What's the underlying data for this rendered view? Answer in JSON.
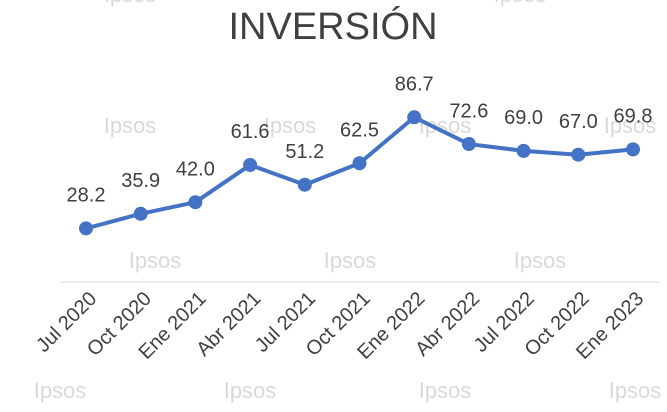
{
  "chart_data": {
    "type": "line",
    "title": "INVERSIÓN",
    "categories": [
      "Jul 2020",
      "Oct 2020",
      "Ene 2021",
      "Abr 2021",
      "Jul 2021",
      "Oct 2021",
      "Ene 2022",
      "Abr 2022",
      "Jul 2022",
      "Oct 2022",
      "Ene 2023"
    ],
    "values": [
      28.2,
      35.9,
      42.0,
      61.6,
      51.2,
      62.5,
      86.7,
      72.6,
      69.0,
      67.0,
      69.8
    ],
    "value_labels": [
      "28.2",
      "35.9",
      "42.0",
      "61.6",
      "51.2",
      "62.5",
      "86.7",
      "72.6",
      "69.0",
      "67.0",
      "69.8"
    ],
    "color": "#4472c4",
    "ylim": [
      0,
      100
    ],
    "watermark": "Ipsos"
  }
}
